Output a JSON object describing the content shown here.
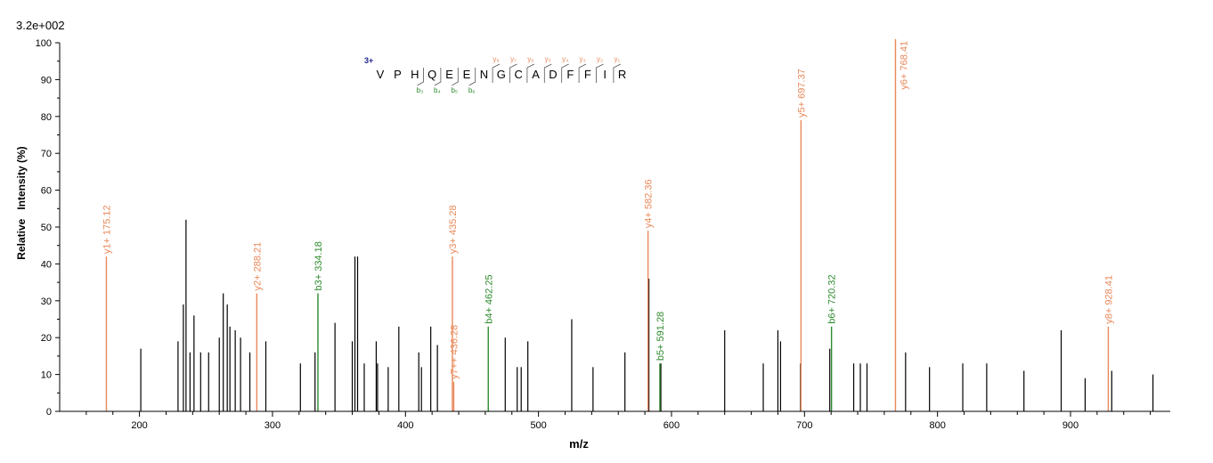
{
  "intensity_scale": "3.2e+002",
  "peptide": {
    "charge": "3+",
    "residues": [
      "V",
      "P",
      "H",
      "Q",
      "E",
      "E",
      "N",
      "G",
      "C",
      "A",
      "D",
      "F",
      "F",
      "I",
      "R"
    ],
    "y_ions": [
      "y₈",
      "y₇",
      "y₆",
      "y₅",
      "y₄",
      "y₃",
      "y₂",
      "y₁"
    ],
    "b_ions": [
      "b₃",
      "b₄",
      "b₅",
      "b₆"
    ]
  },
  "colors": {
    "y": "#e8885a",
    "b": "#2e8b2e",
    "other": "#000000",
    "charge": "#1f1f8f"
  },
  "chart_data": {
    "type": "bar",
    "xlabel": "m/z",
    "ylabel": "Relative   Intensity (%)",
    "xlim": [
      140,
      975
    ],
    "ylim": [
      0,
      100
    ],
    "xticks": [
      200,
      300,
      400,
      500,
      600,
      700,
      800,
      900
    ],
    "yticks": [
      0,
      10,
      20,
      30,
      40,
      50,
      60,
      70,
      80,
      90,
      100
    ],
    "grid": false,
    "peaks": [
      {
        "x": 201.0,
        "y": 17
      },
      {
        "x": 229.0,
        "y": 19
      },
      {
        "x": 233.0,
        "y": 29
      },
      {
        "x": 235.0,
        "y": 52
      },
      {
        "x": 238.0,
        "y": 16
      },
      {
        "x": 241.0,
        "y": 26
      },
      {
        "x": 246.0,
        "y": 16
      },
      {
        "x": 252.0,
        "y": 16
      },
      {
        "x": 260.0,
        "y": 20
      },
      {
        "x": 263.0,
        "y": 32
      },
      {
        "x": 266.0,
        "y": 29
      },
      {
        "x": 268.0,
        "y": 23
      },
      {
        "x": 272.0,
        "y": 22
      },
      {
        "x": 276.0,
        "y": 20
      },
      {
        "x": 283.0,
        "y": 16
      },
      {
        "x": 295.0,
        "y": 19
      },
      {
        "x": 321.0,
        "y": 13
      },
      {
        "x": 332.0,
        "y": 16
      },
      {
        "x": 347.0,
        "y": 24
      },
      {
        "x": 360.0,
        "y": 19
      },
      {
        "x": 362.0,
        "y": 42
      },
      {
        "x": 364.0,
        "y": 42
      },
      {
        "x": 369.0,
        "y": 13
      },
      {
        "x": 378.0,
        "y": 19
      },
      {
        "x": 379.0,
        "y": 13
      },
      {
        "x": 387.0,
        "y": 12
      },
      {
        "x": 395.0,
        "y": 23
      },
      {
        "x": 410.0,
        "y": 16
      },
      {
        "x": 412.0,
        "y": 12
      },
      {
        "x": 419.0,
        "y": 23
      },
      {
        "x": 424.0,
        "y": 18
      },
      {
        "x": 475.0,
        "y": 20
      },
      {
        "x": 484.0,
        "y": 12
      },
      {
        "x": 487.0,
        "y": 12
      },
      {
        "x": 492.0,
        "y": 19
      },
      {
        "x": 525.0,
        "y": 25
      },
      {
        "x": 541.0,
        "y": 12
      },
      {
        "x": 565.0,
        "y": 16
      },
      {
        "x": 583.0,
        "y": 36
      },
      {
        "x": 592.0,
        "y": 13
      },
      {
        "x": 640.0,
        "y": 22
      },
      {
        "x": 669.0,
        "y": 13
      },
      {
        "x": 680.0,
        "y": 22
      },
      {
        "x": 682.0,
        "y": 19
      },
      {
        "x": 697.0,
        "y": 13
      },
      {
        "x": 719.0,
        "y": 17
      },
      {
        "x": 737.0,
        "y": 13
      },
      {
        "x": 742.0,
        "y": 13
      },
      {
        "x": 747.0,
        "y": 13
      },
      {
        "x": 776.0,
        "y": 16
      },
      {
        "x": 794.0,
        "y": 12
      },
      {
        "x": 819.0,
        "y": 13
      },
      {
        "x": 837.0,
        "y": 13
      },
      {
        "x": 865.0,
        "y": 11
      },
      {
        "x": 893.0,
        "y": 22
      },
      {
        "x": 911.0,
        "y": 9
      },
      {
        "x": 931.0,
        "y": 11
      },
      {
        "x": 962.0,
        "y": 10
      }
    ],
    "annotated_peaks": [
      {
        "x": 175.12,
        "y": 42,
        "ion": "y",
        "label": "y1+ 175.12"
      },
      {
        "x": 288.21,
        "y": 32,
        "ion": "y",
        "label": "y2+ 288.21"
      },
      {
        "x": 334.18,
        "y": 32,
        "ion": "b",
        "label": "b3+ 334.18"
      },
      {
        "x": 435.28,
        "y": 42,
        "ion": "y",
        "label": "y3+ 435.28"
      },
      {
        "x": 436.28,
        "y": 8,
        "ion": "y",
        "label": "y7++ 436.28"
      },
      {
        "x": 462.25,
        "y": 23,
        "ion": "b",
        "label": "b4+ 462.25"
      },
      {
        "x": 582.36,
        "y": 49,
        "ion": "y",
        "label": "y4+ 582.36"
      },
      {
        "x": 591.28,
        "y": 13,
        "ion": "b",
        "label": "b5+ 591.28"
      },
      {
        "x": 697.37,
        "y": 79,
        "ion": "y",
        "label": "y5+ 697.37"
      },
      {
        "x": 720.32,
        "y": 23,
        "ion": "b",
        "label": "b6+ 720.32"
      },
      {
        "x": 768.41,
        "y": 101,
        "ion": "y",
        "label": "y6+ 768.41"
      },
      {
        "x": 928.41,
        "y": 23,
        "ion": "y",
        "label": "y8+ 928.41"
      }
    ]
  }
}
